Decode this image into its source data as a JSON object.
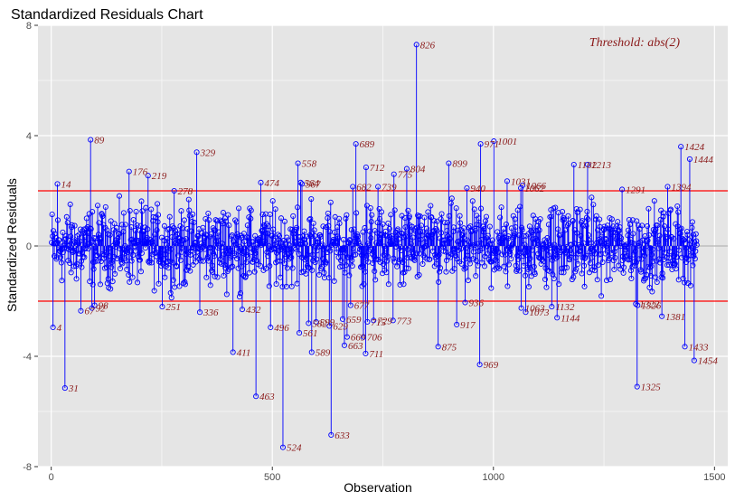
{
  "chart_data": {
    "type": "scatter",
    "title": "Standardized Residuals Chart",
    "xlabel": "Observation",
    "ylabel": "Standardized Residuals",
    "xlim": [
      -30,
      1530
    ],
    "ylim": [
      -8,
      8
    ],
    "x_ticks": [
      0,
      500,
      1000,
      1500
    ],
    "y_ticks": [
      -8,
      -4,
      0,
      4,
      8
    ],
    "threshold": 2,
    "threshold_label": "Threshold: abs(2)",
    "colors": {
      "points": "#0000ff",
      "threshold_line": "#ff0000",
      "zero_line": "#b3b3b3",
      "labels": "#8b1a1a",
      "panel": "#e5e5e5",
      "grid": "#ffffff"
    },
    "grid": true,
    "n_observations": 1460,
    "labeled_points": [
      {
        "x": 4,
        "y": -2.95,
        "label": "4"
      },
      {
        "x": 14,
        "y": 2.25,
        "label": "14"
      },
      {
        "x": 31,
        "y": -5.15,
        "label": "31"
      },
      {
        "x": 67,
        "y": -2.35,
        "label": "67"
      },
      {
        "x": 89,
        "y": 3.85,
        "label": "89"
      },
      {
        "x": 92,
        "y": -2.25,
        "label": "92"
      },
      {
        "x": 98,
        "y": -2.15,
        "label": "98"
      },
      {
        "x": 176,
        "y": 2.7,
        "label": "176"
      },
      {
        "x": 219,
        "y": 2.55,
        "label": "219"
      },
      {
        "x": 251,
        "y": -2.2,
        "label": "251"
      },
      {
        "x": 278,
        "y": 2.0,
        "label": "278"
      },
      {
        "x": 329,
        "y": 3.4,
        "label": "329"
      },
      {
        "x": 336,
        "y": -2.4,
        "label": "336"
      },
      {
        "x": 411,
        "y": -3.85,
        "label": "411"
      },
      {
        "x": 432,
        "y": -2.3,
        "label": "432"
      },
      {
        "x": 463,
        "y": -5.45,
        "label": "463"
      },
      {
        "x": 474,
        "y": 2.3,
        "label": "474"
      },
      {
        "x": 496,
        "y": -2.95,
        "label": "496"
      },
      {
        "x": 524,
        "y": -7.3,
        "label": "524"
      },
      {
        "x": 558,
        "y": 3.0,
        "label": "558"
      },
      {
        "x": 561,
        "y": -3.15,
        "label": "561"
      },
      {
        "x": 564,
        "y": 2.3,
        "label": "564"
      },
      {
        "x": 567,
        "y": 2.25,
        "label": "567"
      },
      {
        "x": 582,
        "y": -2.8,
        "label": "582"
      },
      {
        "x": 589,
        "y": -3.85,
        "label": "589"
      },
      {
        "x": 599,
        "y": -2.75,
        "label": "599"
      },
      {
        "x": 629,
        "y": -2.9,
        "label": "629"
      },
      {
        "x": 633,
        "y": -6.85,
        "label": "633"
      },
      {
        "x": 659,
        "y": -2.65,
        "label": "659"
      },
      {
        "x": 663,
        "y": -3.6,
        "label": "663"
      },
      {
        "x": 669,
        "y": -3.3,
        "label": "669"
      },
      {
        "x": 677,
        "y": -2.15,
        "label": "677"
      },
      {
        "x": 682,
        "y": 2.15,
        "label": "682"
      },
      {
        "x": 689,
        "y": 3.7,
        "label": "689"
      },
      {
        "x": 706,
        "y": -3.3,
        "label": "706"
      },
      {
        "x": 711,
        "y": -3.9,
        "label": "711"
      },
      {
        "x": 712,
        "y": 2.85,
        "label": "712"
      },
      {
        "x": 715,
        "y": -2.75,
        "label": "715"
      },
      {
        "x": 729,
        "y": -2.7,
        "label": "729"
      },
      {
        "x": 739,
        "y": 2.15,
        "label": "739"
      },
      {
        "x": 773,
        "y": -2.7,
        "label": "773"
      },
      {
        "x": 775,
        "y": 2.6,
        "label": "775"
      },
      {
        "x": 804,
        "y": 2.8,
        "label": "804"
      },
      {
        "x": 826,
        "y": 7.3,
        "label": "826"
      },
      {
        "x": 875,
        "y": -3.65,
        "label": "875"
      },
      {
        "x": 899,
        "y": 3.0,
        "label": "899"
      },
      {
        "x": 917,
        "y": -2.85,
        "label": "917"
      },
      {
        "x": 936,
        "y": -2.05,
        "label": "936"
      },
      {
        "x": 940,
        "y": 2.1,
        "label": "940"
      },
      {
        "x": 969,
        "y": -4.3,
        "label": "969"
      },
      {
        "x": 971,
        "y": 3.7,
        "label": "971"
      },
      {
        "x": 1001,
        "y": 3.8,
        "label": "1001"
      },
      {
        "x": 1031,
        "y": 2.35,
        "label": "1031"
      },
      {
        "x": 1062,
        "y": 2.1,
        "label": "1062"
      },
      {
        "x": 1063,
        "y": -2.25,
        "label": "1063"
      },
      {
        "x": 1066,
        "y": 2.2,
        "label": "1066"
      },
      {
        "x": 1073,
        "y": -2.4,
        "label": "1073"
      },
      {
        "x": 1132,
        "y": -2.2,
        "label": "1132"
      },
      {
        "x": 1144,
        "y": -2.6,
        "label": "1144"
      },
      {
        "x": 1182,
        "y": 2.95,
        "label": "1182"
      },
      {
        "x": 1213,
        "y": 2.95,
        "label": "1213"
      },
      {
        "x": 1291,
        "y": 2.05,
        "label": "1291"
      },
      {
        "x": 1322,
        "y": -2.1,
        "label": "1322"
      },
      {
        "x": 1325,
        "y": -5.1,
        "label": "1325"
      },
      {
        "x": 1326,
        "y": -2.15,
        "label": "1326"
      },
      {
        "x": 1381,
        "y": -2.55,
        "label": "1381"
      },
      {
        "x": 1394,
        "y": 2.15,
        "label": "1394"
      },
      {
        "x": 1424,
        "y": 3.6,
        "label": "1424"
      },
      {
        "x": 1433,
        "y": -3.65,
        "label": "1433"
      },
      {
        "x": 1444,
        "y": 3.15,
        "label": "1444"
      },
      {
        "x": 1454,
        "y": -4.15,
        "label": "1454"
      }
    ]
  }
}
